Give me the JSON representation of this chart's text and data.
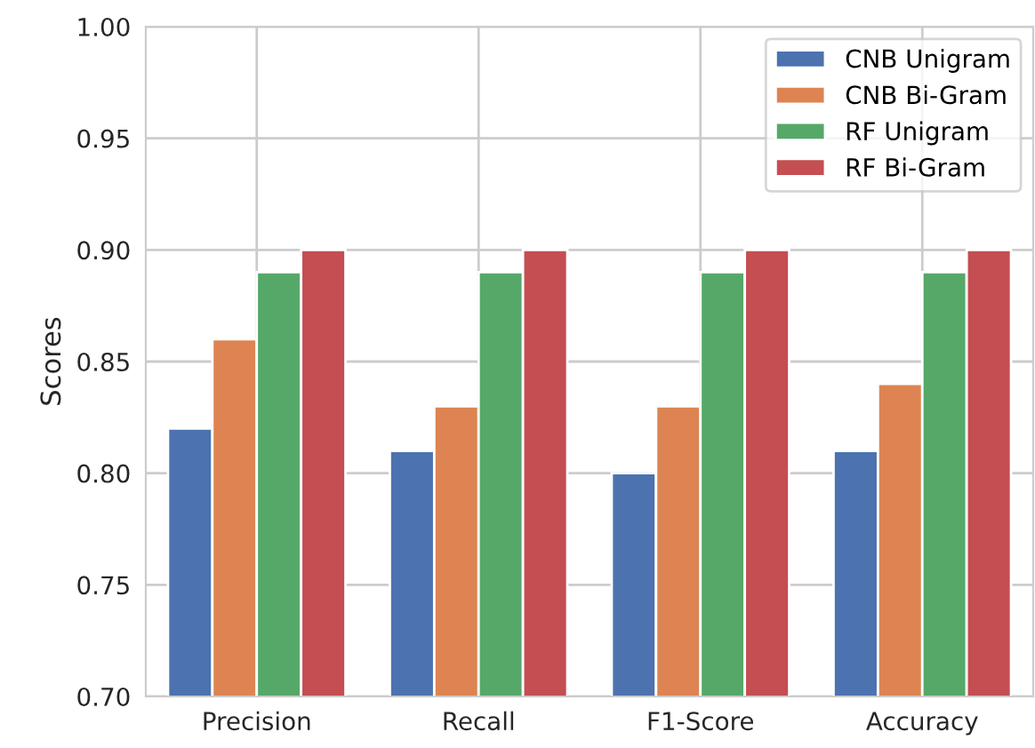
{
  "chart_data": {
    "type": "bar",
    "ylabel": "Scores",
    "categories": [
      "Precision",
      "Recall",
      "F1-Score",
      "Accuracy"
    ],
    "series": [
      {
        "name": "CNB Unigram",
        "color": "#4c72b0",
        "values": [
          0.82,
          0.81,
          0.8,
          0.81
        ]
      },
      {
        "name": "CNB Bi-Gram",
        "color": "#dd8452",
        "values": [
          0.86,
          0.83,
          0.83,
          0.84
        ]
      },
      {
        "name": "RF Unigram",
        "color": "#55a868",
        "values": [
          0.89,
          0.89,
          0.89,
          0.89
        ]
      },
      {
        "name": "RF Bi-Gram",
        "color": "#c44e52",
        "values": [
          0.9,
          0.9,
          0.9,
          0.9
        ]
      }
    ],
    "ylim": [
      0.7,
      1.0
    ],
    "yticks": [
      {
        "value": 0.7,
        "label": "0.70"
      },
      {
        "value": 0.75,
        "label": "0.75"
      },
      {
        "value": 0.8,
        "label": "0.80"
      },
      {
        "value": 0.85,
        "label": "0.85"
      },
      {
        "value": 0.9,
        "label": "0.90"
      },
      {
        "value": 0.95,
        "label": "0.95"
      },
      {
        "value": 1.0,
        "label": "1.00"
      }
    ],
    "grid": true,
    "legend": "top right"
  }
}
